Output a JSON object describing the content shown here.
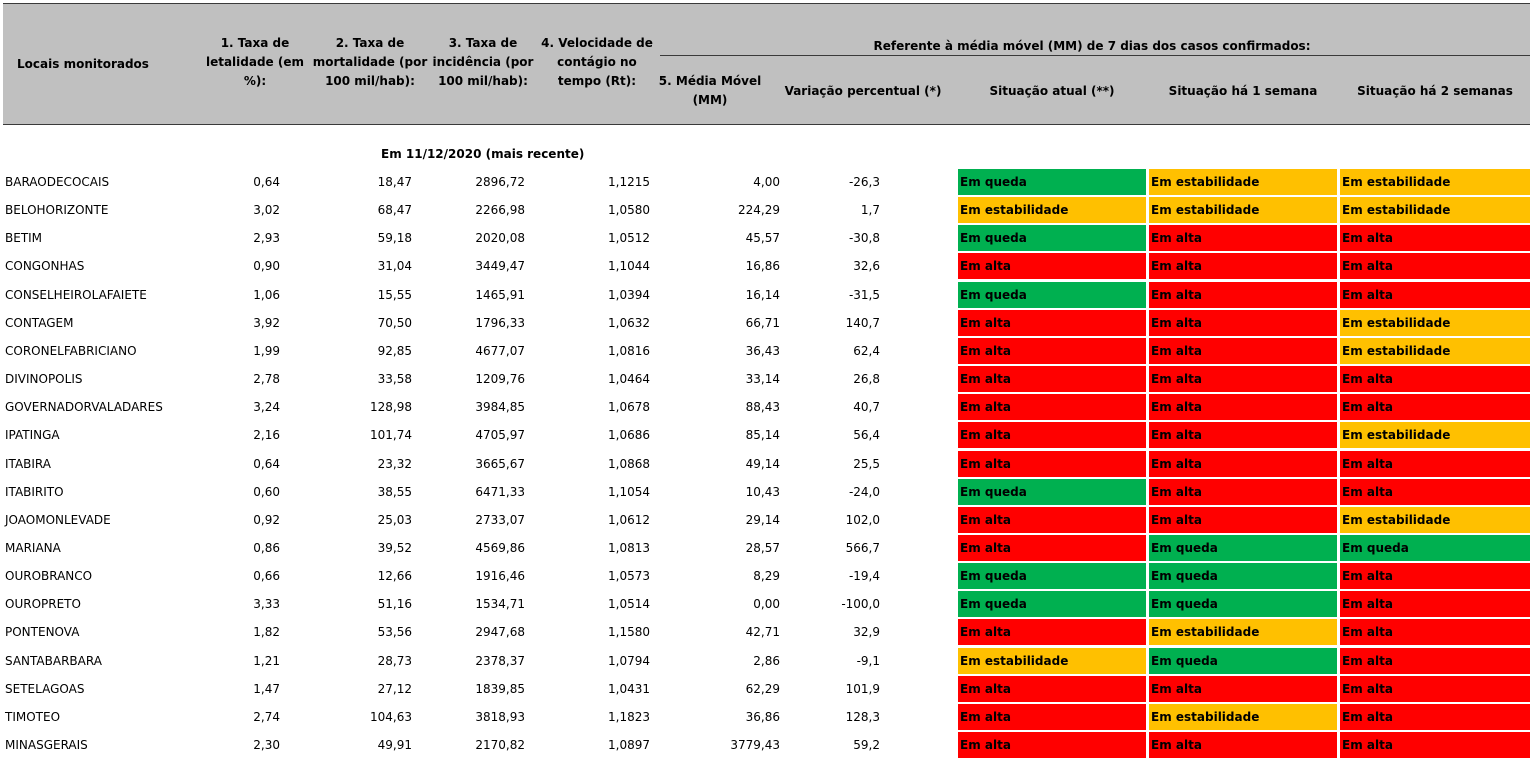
{
  "header": {
    "col_locais": "Locais monitorados",
    "col_letalidade": "1. Taxa de\nletalidade (em\n%):",
    "col_mortalidade": "2. Taxa de\nmortalidade (por\n100 mil/hab):",
    "col_incidencia": "3. Taxa de\nincidência  (por\n100 mil/hab):",
    "col_velocidade": "4. Velocidade de\ncontágio no\ntempo (Rt):",
    "group_label": "Referente à média móvel (MM) de 7 dias  dos casos confirmados:",
    "col_media_movel": "5. Média Móvel\n(MM)",
    "col_variacao": "Variação percentual (*)",
    "col_sit_atual": "Situação atual (**)",
    "col_sit_1sem": "Situação há 1 semana",
    "col_sit_2sem": "Situação há 2 semanas"
  },
  "section_label": "Em 11/12/2020 (mais recente)",
  "status_labels": {
    "queda": "Em queda",
    "alta": "Em alta",
    "estab": "Em estabilidade"
  },
  "status_colors": {
    "queda": "#00b050",
    "alta": "#ff0000",
    "estab": "#ffc000"
  },
  "rows": [
    {
      "local": "BARAODECOCAIS",
      "letalidade": "0,64",
      "mortalidade": "18,47",
      "incidencia": "2896,72",
      "rt": "1,1215",
      "mm": "4,00",
      "variacao": "-26,3",
      "atual": "queda",
      "sem1": "estab",
      "sem2": "estab"
    },
    {
      "local": "BELOHORIZONTE",
      "letalidade": "3,02",
      "mortalidade": "68,47",
      "incidencia": "2266,98",
      "rt": "1,0580",
      "mm": "224,29",
      "variacao": "1,7",
      "atual": "estab",
      "sem1": "estab",
      "sem2": "estab"
    },
    {
      "local": "BETIM",
      "letalidade": "2,93",
      "mortalidade": "59,18",
      "incidencia": "2020,08",
      "rt": "1,0512",
      "mm": "45,57",
      "variacao": "-30,8",
      "atual": "queda",
      "sem1": "alta",
      "sem2": "alta"
    },
    {
      "local": "CONGONHAS",
      "letalidade": "0,90",
      "mortalidade": "31,04",
      "incidencia": "3449,47",
      "rt": "1,1044",
      "mm": "16,86",
      "variacao": "32,6",
      "atual": "alta",
      "sem1": "alta",
      "sem2": "alta"
    },
    {
      "local": "CONSELHEIROLAFAIETE",
      "letalidade": "1,06",
      "mortalidade": "15,55",
      "incidencia": "1465,91",
      "rt": "1,0394",
      "mm": "16,14",
      "variacao": "-31,5",
      "atual": "queda",
      "sem1": "alta",
      "sem2": "alta"
    },
    {
      "local": "CONTAGEM",
      "letalidade": "3,92",
      "mortalidade": "70,50",
      "incidencia": "1796,33",
      "rt": "1,0632",
      "mm": "66,71",
      "variacao": "140,7",
      "atual": "alta",
      "sem1": "alta",
      "sem2": "estab"
    },
    {
      "local": "CORONELFABRICIANO",
      "letalidade": "1,99",
      "mortalidade": "92,85",
      "incidencia": "4677,07",
      "rt": "1,0816",
      "mm": "36,43",
      "variacao": "62,4",
      "atual": "alta",
      "sem1": "alta",
      "sem2": "estab"
    },
    {
      "local": "DIVINOPOLIS",
      "letalidade": "2,78",
      "mortalidade": "33,58",
      "incidencia": "1209,76",
      "rt": "1,0464",
      "mm": "33,14",
      "variacao": "26,8",
      "atual": "alta",
      "sem1": "alta",
      "sem2": "alta"
    },
    {
      "local": "GOVERNADORVALADARES",
      "letalidade": "3,24",
      "mortalidade": "128,98",
      "incidencia": "3984,85",
      "rt": "1,0678",
      "mm": "88,43",
      "variacao": "40,7",
      "atual": "alta",
      "sem1": "alta",
      "sem2": "alta"
    },
    {
      "local": "IPATINGA",
      "letalidade": "2,16",
      "mortalidade": "101,74",
      "incidencia": "4705,97",
      "rt": "1,0686",
      "mm": "85,14",
      "variacao": "56,4",
      "atual": "alta",
      "sem1": "alta",
      "sem2": "estab"
    },
    {
      "local": "ITABIRA",
      "letalidade": "0,64",
      "mortalidade": "23,32",
      "incidencia": "3665,67",
      "rt": "1,0868",
      "mm": "49,14",
      "variacao": "25,5",
      "atual": "alta",
      "sem1": "alta",
      "sem2": "alta"
    },
    {
      "local": "ITABIRITO",
      "letalidade": "0,60",
      "mortalidade": "38,55",
      "incidencia": "6471,33",
      "rt": "1,1054",
      "mm": "10,43",
      "variacao": "-24,0",
      "atual": "queda",
      "sem1": "alta",
      "sem2": "alta"
    },
    {
      "local": "JOAOMONLEVADE",
      "letalidade": "0,92",
      "mortalidade": "25,03",
      "incidencia": "2733,07",
      "rt": "1,0612",
      "mm": "29,14",
      "variacao": "102,0",
      "atual": "alta",
      "sem1": "alta",
      "sem2": "estab"
    },
    {
      "local": "MARIANA",
      "letalidade": "0,86",
      "mortalidade": "39,52",
      "incidencia": "4569,86",
      "rt": "1,0813",
      "mm": "28,57",
      "variacao": "566,7",
      "atual": "alta",
      "sem1": "queda",
      "sem2": "queda"
    },
    {
      "local": "OUROBRANCO",
      "letalidade": "0,66",
      "mortalidade": "12,66",
      "incidencia": "1916,46",
      "rt": "1,0573",
      "mm": "8,29",
      "variacao": "-19,4",
      "atual": "queda",
      "sem1": "queda",
      "sem2": "alta"
    },
    {
      "local": "OUROPRETO",
      "letalidade": "3,33",
      "mortalidade": "51,16",
      "incidencia": "1534,71",
      "rt": "1,0514",
      "mm": "0,00",
      "variacao": "-100,0",
      "atual": "queda",
      "sem1": "queda",
      "sem2": "alta"
    },
    {
      "local": "PONTENOVA",
      "letalidade": "1,82",
      "mortalidade": "53,56",
      "incidencia": "2947,68",
      "rt": "1,1580",
      "mm": "42,71",
      "variacao": "32,9",
      "atual": "alta",
      "sem1": "estab",
      "sem2": "alta"
    },
    {
      "local": "SANTABARBARA",
      "letalidade": "1,21",
      "mortalidade": "28,73",
      "incidencia": "2378,37",
      "rt": "1,0794",
      "mm": "2,86",
      "variacao": "-9,1",
      "atual": "estab",
      "sem1": "queda",
      "sem2": "alta"
    },
    {
      "local": "SETELAGOAS",
      "letalidade": "1,47",
      "mortalidade": "27,12",
      "incidencia": "1839,85",
      "rt": "1,0431",
      "mm": "62,29",
      "variacao": "101,9",
      "atual": "alta",
      "sem1": "alta",
      "sem2": "alta"
    },
    {
      "local": "TIMOTEO",
      "letalidade": "2,74",
      "mortalidade": "104,63",
      "incidencia": "3818,93",
      "rt": "1,1823",
      "mm": "36,86",
      "variacao": "128,3",
      "atual": "alta",
      "sem1": "estab",
      "sem2": "alta"
    },
    {
      "local": "MINASGERAIS",
      "letalidade": "2,30",
      "mortalidade": "49,91",
      "incidencia": "2170,82",
      "rt": "1,0897",
      "mm": "3779,43",
      "variacao": "59,2",
      "atual": "alta",
      "sem1": "alta",
      "sem2": "alta"
    }
  ]
}
